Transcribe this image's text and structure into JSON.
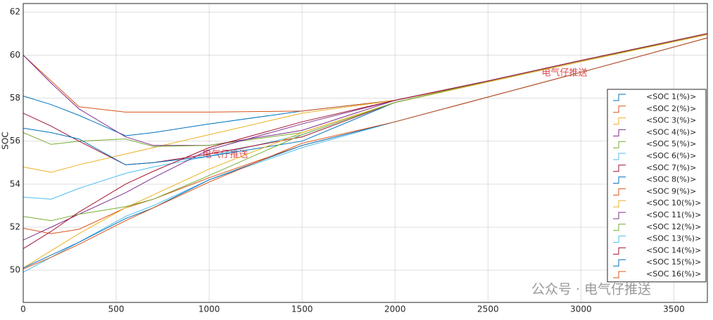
{
  "chart_data": {
    "type": "line",
    "ylabel": "SOC",
    "x": [
      0,
      150,
      300,
      550,
      700,
      1000,
      1500,
      2000,
      2500,
      3000,
      3680
    ],
    "xlim": [
      0,
      3680
    ],
    "ylim": [
      48.5,
      62.4
    ],
    "xticks": [
      0,
      500,
      1000,
      1500,
      2000,
      2500,
      3000,
      3500
    ],
    "yticks": [
      50,
      52,
      54,
      56,
      58,
      60,
      62
    ],
    "grid": true,
    "legend": "right",
    "series": [
      {
        "name": "<SOC 1(%)>",
        "color": "#0072BD",
        "values": [
          58.1,
          57.7,
          57.2,
          56.25,
          56.4,
          56.8,
          57.4,
          57.9,
          58.8,
          59.75,
          61.0
        ]
      },
      {
        "name": "<SOC 2(%)>",
        "color": "#D95319",
        "values": [
          60.0,
          58.8,
          57.6,
          57.35,
          57.35,
          57.35,
          57.4,
          57.9,
          58.8,
          59.75,
          61.0
        ]
      },
      {
        "name": "<SOC 3(%)>",
        "color": "#EDB120",
        "values": [
          54.8,
          54.55,
          54.9,
          55.4,
          55.7,
          56.3,
          57.3,
          57.9,
          58.75,
          59.7,
          60.95
        ]
      },
      {
        "name": "<SOC 4(%)>",
        "color": "#7E2F8E",
        "values": [
          60.0,
          58.7,
          57.5,
          56.2,
          55.8,
          55.8,
          56.5,
          57.9,
          58.8,
          59.75,
          61.0
        ]
      },
      {
        "name": "<SOC 5(%)>",
        "color": "#77AC30",
        "values": [
          56.4,
          55.85,
          56.0,
          56.1,
          55.75,
          55.8,
          56.4,
          57.8,
          58.75,
          59.7,
          61.0
        ]
      },
      {
        "name": "<SOC 6(%)>",
        "color": "#4DBEEE",
        "values": [
          53.4,
          53.3,
          53.8,
          54.5,
          54.8,
          55.3,
          56.3,
          57.8,
          58.75,
          59.7,
          60.95
        ]
      },
      {
        "name": "<SOC 7(%)>",
        "color": "#A2142F",
        "values": [
          57.3,
          56.7,
          56.0,
          54.9,
          55.0,
          55.4,
          56.2,
          57.8,
          58.8,
          59.75,
          61.0
        ]
      },
      {
        "name": "<SOC 8(%)>",
        "color": "#0072BD",
        "values": [
          56.6,
          56.4,
          56.1,
          54.9,
          55.0,
          55.3,
          56.0,
          57.8,
          58.8,
          59.75,
          61.0
        ]
      },
      {
        "name": "<SOC 9(%)>",
        "color": "#D95319",
        "values": [
          51.95,
          51.7,
          51.9,
          52.9,
          53.3,
          54.3,
          55.8,
          56.9,
          58.05,
          59.2,
          60.8
        ]
      },
      {
        "name": "<SOC 10(%)>",
        "color": "#EDB120",
        "values": [
          50.1,
          50.9,
          51.7,
          52.9,
          53.5,
          54.7,
          56.4,
          57.8,
          58.75,
          59.7,
          60.95
        ]
      },
      {
        "name": "<SOC 11(%)>",
        "color": "#7E2F8E",
        "values": [
          51.4,
          52.0,
          52.6,
          53.6,
          54.3,
          55.6,
          56.8,
          57.9,
          58.8,
          59.75,
          61.0
        ]
      },
      {
        "name": "<SOC 12(%)>",
        "color": "#77AC30",
        "values": [
          52.5,
          52.3,
          52.6,
          52.95,
          53.3,
          54.4,
          56.3,
          57.8,
          58.8,
          59.75,
          61.0
        ]
      },
      {
        "name": "<SOC 13(%)>",
        "color": "#4DBEEE",
        "values": [
          49.9,
          50.6,
          51.3,
          52.5,
          53.0,
          54.2,
          55.7,
          56.9,
          58.05,
          59.2,
          60.8
        ]
      },
      {
        "name": "<SOC 14(%)>",
        "color": "#A2142F",
        "values": [
          51.0,
          51.8,
          52.7,
          54.0,
          54.6,
          55.7,
          56.9,
          57.9,
          58.8,
          59.75,
          61.0
        ]
      },
      {
        "name": "<SOC 15(%)>",
        "color": "#0072BD",
        "values": [
          50.1,
          50.7,
          51.3,
          52.4,
          52.9,
          54.2,
          55.8,
          56.9,
          58.05,
          59.2,
          60.8
        ]
      },
      {
        "name": "<SOC 16(%)>",
        "color": "#D95319",
        "values": [
          50.05,
          50.6,
          51.2,
          52.3,
          52.9,
          54.1,
          55.9,
          56.9,
          58.05,
          59.2,
          60.8
        ]
      }
    ],
    "watermarks": [
      "电气仔推送",
      "电气仔推送",
      "公众号 · 电气仔推送"
    ]
  }
}
